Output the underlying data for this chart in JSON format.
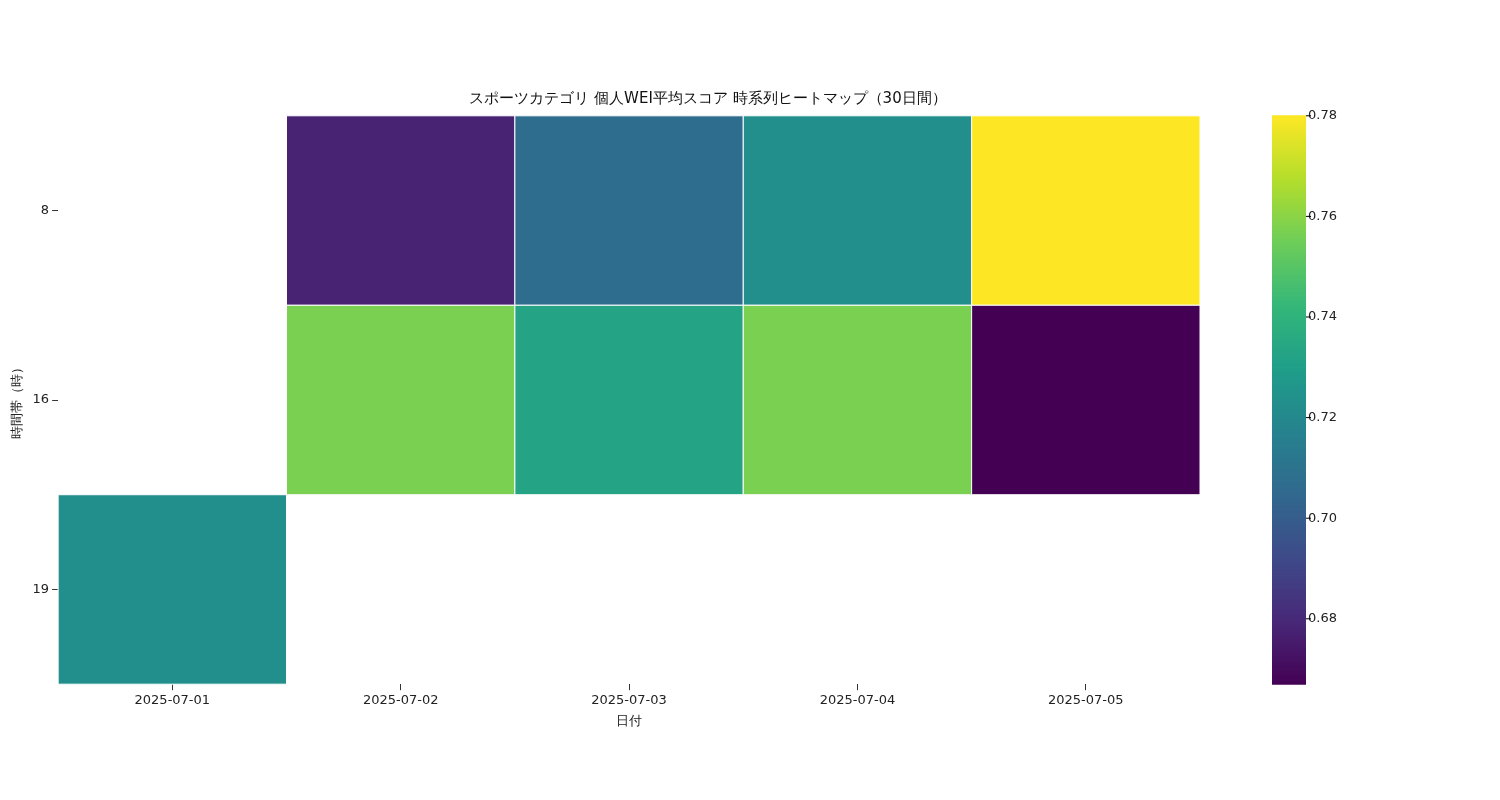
{
  "chart_data": {
    "type": "heatmap",
    "title": "スポーツカテゴリ 個人WEI平均スコア 時系列ヒートマップ（30日間）",
    "xlabel": "日付",
    "ylabel": "時間帯（時）",
    "clabel": null,
    "categories": [
      "2025-07-01",
      "2025-07-02",
      "2025-07-03",
      "2025-07-04",
      "2025-07-05"
    ],
    "y_categories": [
      "8",
      "16",
      "19"
    ],
    "cells": [
      [
        null,
        0.678,
        0.707,
        0.723,
        0.78
      ],
      [
        null,
        0.757,
        0.733,
        0.757,
        0.667
      ],
      [
        0.723,
        null,
        null,
        null,
        null
      ]
    ],
    "clim": [
      0.667,
      0.78
    ],
    "cticks": [
      {
        "value": 0.68,
        "label": "0.68"
      },
      {
        "value": 0.7,
        "label": "0.70"
      },
      {
        "value": 0.72,
        "label": "0.72"
      },
      {
        "value": 0.74,
        "label": "0.74"
      },
      {
        "value": 0.76,
        "label": "0.76"
      },
      {
        "value": 0.78,
        "label": "0.78"
      }
    ]
  }
}
